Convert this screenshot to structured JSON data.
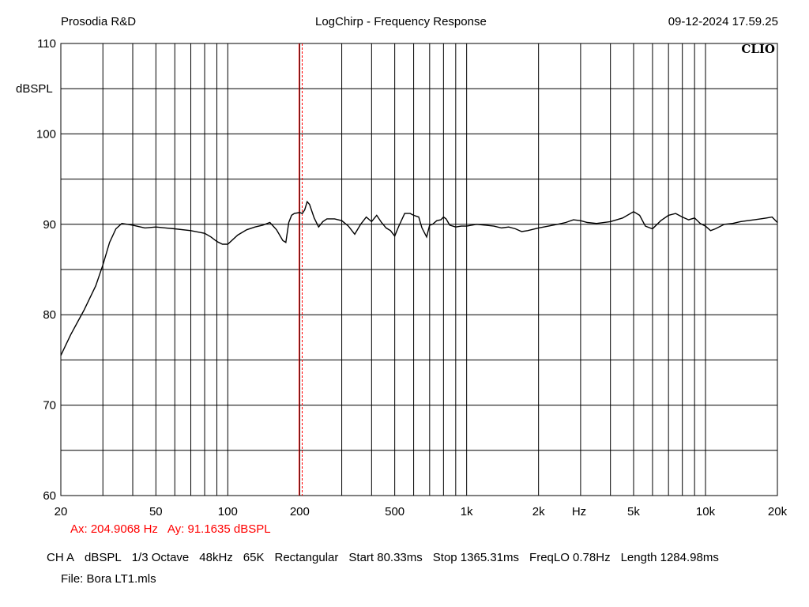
{
  "header": {
    "brand": "Prosodia R&D",
    "title": "LogChirp - Frequency Response",
    "timestamp": "09-12-2024 17.59.25"
  },
  "cursor": {
    "ax_label": "Ax: 204.9068 Hz",
    "ay_label": "Ay: 91.1635 dBSPL",
    "x_value": 204.9068,
    "color": "#ff0000"
  },
  "settings": [
    "CH A",
    "dBSPL",
    "1/3 Octave",
    "48kHz",
    "65K",
    "Rectangular",
    "Start 80.33ms",
    "Stop 1365.31ms",
    "FreqLO 0.78Hz",
    "Length 1284.98ms"
  ],
  "file": "File: Bora LT1.mls",
  "logo_text": "CLIO",
  "chart_data": {
    "type": "line",
    "title": "LogChirp - Frequency Response",
    "xlabel": "Hz",
    "ylabel": "dBSPL",
    "x_scale": "log",
    "xlim": [
      20,
      20000
    ],
    "ylim": [
      60,
      110
    ],
    "grid": true,
    "x_ticks": [
      {
        "value": 20,
        "label": "20"
      },
      {
        "value": 50,
        "label": "50"
      },
      {
        "value": 100,
        "label": "100"
      },
      {
        "value": 200,
        "label": "200"
      },
      {
        "value": 500,
        "label": "500"
      },
      {
        "value": 1000,
        "label": "1k"
      },
      {
        "value": 2000,
        "label": "2k"
      },
      {
        "value": 5000,
        "label": "5k"
      },
      {
        "value": 10000,
        "label": "10k"
      },
      {
        "value": 20000,
        "label": "20k"
      }
    ],
    "y_ticks": [
      {
        "value": 60,
        "label": "60"
      },
      {
        "value": 70,
        "label": "70"
      },
      {
        "value": 80,
        "label": "80"
      },
      {
        "value": 90,
        "label": "90"
      },
      {
        "value": 100,
        "label": "100"
      },
      {
        "value": 110,
        "label": "110"
      }
    ],
    "series": [
      {
        "color": "#000000",
        "x": [
          20,
          22,
          25,
          28,
          30,
          32,
          34,
          36,
          38,
          40,
          45,
          50,
          55,
          60,
          70,
          80,
          85,
          90,
          95,
          100,
          110,
          120,
          130,
          140,
          150,
          160,
          170,
          175,
          180,
          185,
          190,
          200,
          205,
          210,
          215,
          220,
          230,
          240,
          250,
          260,
          280,
          300,
          320,
          340,
          360,
          380,
          400,
          420,
          440,
          460,
          480,
          500,
          520,
          550,
          580,
          600,
          630,
          650,
          680,
          700,
          720,
          750,
          780,
          800,
          820,
          850,
          900,
          950,
          1000,
          1100,
          1200,
          1300,
          1400,
          1500,
          1600,
          1700,
          1800,
          2000,
          2200,
          2400,
          2600,
          2800,
          3000,
          3200,
          3500,
          4000,
          4500,
          5000,
          5300,
          5600,
          6000,
          6500,
          7000,
          7500,
          8000,
          8500,
          9000,
          9500,
          10000,
          10500,
          11000,
          12000,
          13000,
          14000,
          15000,
          16000,
          17000,
          18000,
          19000,
          20000
        ],
        "y": [
          75.5,
          77.8,
          80.5,
          83.2,
          85.5,
          88.0,
          89.5,
          90.1,
          90.0,
          89.9,
          89.6,
          89.7,
          89.6,
          89.5,
          89.3,
          89.0,
          88.6,
          88.1,
          87.8,
          87.8,
          88.8,
          89.4,
          89.7,
          89.9,
          90.2,
          89.4,
          88.2,
          88.0,
          90.2,
          91.0,
          91.2,
          91.3,
          91.2,
          91.6,
          92.5,
          92.2,
          90.7,
          89.7,
          90.3,
          90.6,
          90.6,
          90.4,
          89.8,
          88.9,
          90.0,
          90.8,
          90.3,
          91.0,
          90.2,
          89.6,
          89.3,
          88.7,
          89.8,
          91.2,
          91.2,
          91.0,
          90.8,
          89.6,
          88.6,
          89.9,
          90.0,
          90.4,
          90.5,
          90.8,
          90.6,
          89.9,
          89.7,
          89.8,
          89.8,
          90.0,
          89.9,
          89.8,
          89.6,
          89.7,
          89.5,
          89.2,
          89.3,
          89.6,
          89.8,
          90.0,
          90.2,
          90.5,
          90.4,
          90.2,
          90.1,
          90.3,
          90.7,
          91.4,
          91.0,
          89.8,
          89.5,
          90.4,
          91.0,
          91.2,
          90.8,
          90.5,
          90.7,
          90.1,
          89.8,
          89.3,
          89.5,
          90.0,
          90.1,
          90.3,
          90.4,
          90.5,
          90.6,
          90.7,
          90.8,
          90.2
        ]
      }
    ]
  }
}
